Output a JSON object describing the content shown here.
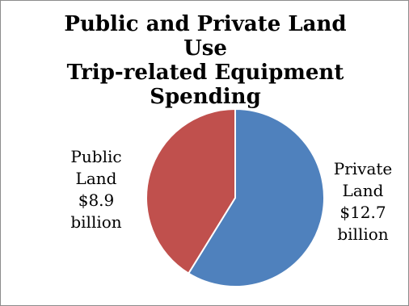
{
  "chart_data": {
    "type": "pie",
    "title_lines": [
      "Public and Private Land Use",
      "Trip-related Equipment",
      "Spending"
    ],
    "slices": [
      {
        "name": "Private Land",
        "value": 12.7,
        "color": "#4f81bd",
        "label_lines": [
          "Private",
          "Land",
          "$12.7",
          "billion"
        ]
      },
      {
        "name": "Public Land",
        "value": 8.9,
        "color": "#c0504d",
        "label_lines": [
          "Public",
          "Land",
          "$8.9",
          "billion"
        ]
      }
    ],
    "units": "billion dollars",
    "legend": "none (data labels beside slices)"
  }
}
